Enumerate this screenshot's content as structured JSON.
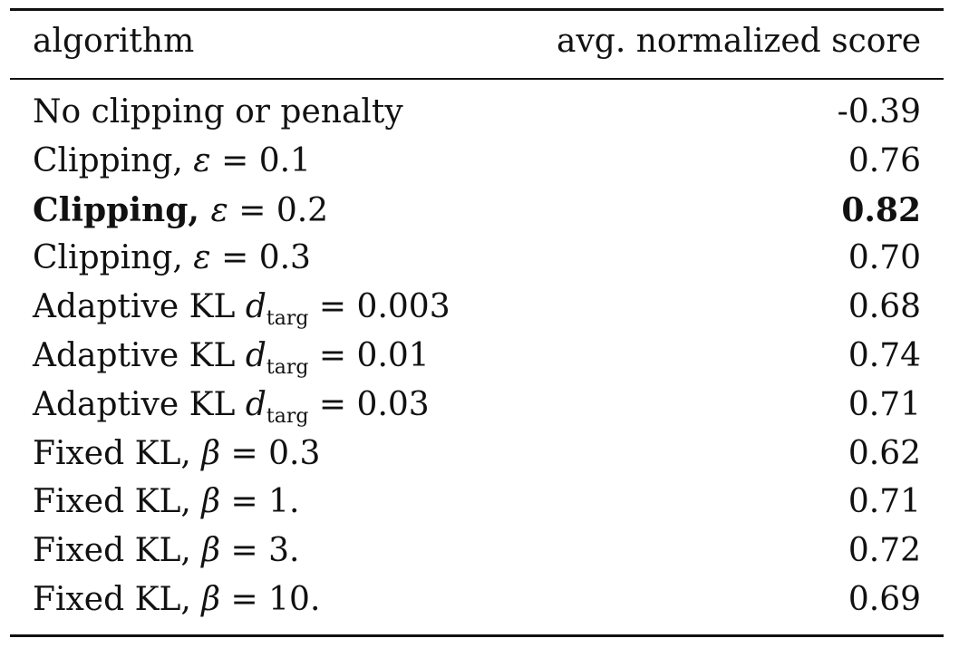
{
  "header": {
    "algorithm": "algorithm",
    "score": "avg. normalized score"
  },
  "rows": [
    {
      "prefix": "No clipping or penalty",
      "var": "",
      "sub": "",
      "op": "",
      "value": "",
      "score": "-0.39",
      "bold": false
    },
    {
      "prefix": "Clipping, ",
      "var": "ε",
      "sub": "",
      "op": " = ",
      "value": "0.1",
      "score": "0.76",
      "bold": false
    },
    {
      "prefix": "Clipping, ",
      "var": "ε",
      "sub": "",
      "op": " = ",
      "value": "0.2",
      "score": "0.82",
      "bold": true
    },
    {
      "prefix": "Clipping, ",
      "var": "ε",
      "sub": "",
      "op": " = ",
      "value": "0.3",
      "score": "0.70",
      "bold": false
    },
    {
      "prefix": "Adaptive KL ",
      "var": "d",
      "sub": "targ",
      "op": " = ",
      "value": "0.003",
      "score": "0.68",
      "bold": false
    },
    {
      "prefix": "Adaptive KL ",
      "var": "d",
      "sub": "targ",
      "op": " = ",
      "value": "0.01",
      "score": "0.74",
      "bold": false
    },
    {
      "prefix": "Adaptive KL ",
      "var": "d",
      "sub": "targ",
      "op": " = ",
      "value": "0.03",
      "score": "0.71",
      "bold": false
    },
    {
      "prefix": "Fixed KL, ",
      "var": "β",
      "sub": "",
      "op": " = ",
      "value": "0.3",
      "score": "0.62",
      "bold": false
    },
    {
      "prefix": "Fixed KL, ",
      "var": "β",
      "sub": "",
      "op": " = ",
      "value": "1.",
      "score": "0.71",
      "bold": false
    },
    {
      "prefix": "Fixed KL, ",
      "var": "β",
      "sub": "",
      "op": " = ",
      "value": "3.",
      "score": "0.72",
      "bold": false
    },
    {
      "prefix": "Fixed KL, ",
      "var": "β",
      "sub": "",
      "op": " = ",
      "value": "10.",
      "score": "0.69",
      "bold": false
    }
  ]
}
